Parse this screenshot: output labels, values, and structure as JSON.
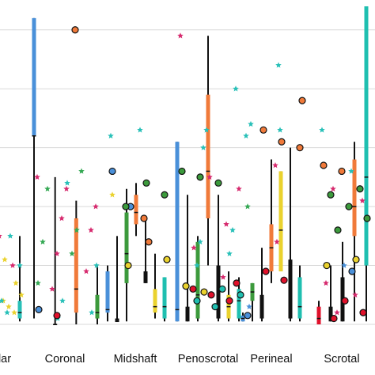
{
  "chart_data": {
    "type": "box",
    "categories": [
      "Glandular",
      "Coronal",
      "Midshaft",
      "Penoscrotal",
      "Perineal",
      "Scrotal"
    ],
    "visible_category_text": [
      "lar",
      "Coronal",
      "Midshaft",
      "Penoscrotal",
      "Perineal",
      "Scrotal"
    ],
    "ylim": [
      0,
      5.4
    ],
    "grid": true,
    "legend": "none",
    "colors": {
      "blue": "#4a90d9",
      "black": "#111111",
      "orange": "#f07a3a",
      "green": "#3c9a3c",
      "yellow": "#ead22e",
      "teal": "#1fbfb0",
      "red": "#e0112b",
      "magenta": "#d62a6e",
      "cyan_star": "#28c0b8",
      "green_star": "#34a853"
    },
    "groups": [
      {
        "category": "Glandular",
        "boxes": [
          {
            "color": "yellow",
            "whisker": [
              0.05,
              1.1
            ],
            "box": [
              0.1,
              0.5
            ],
            "median": 0.3
          },
          {
            "color": "cyan_star",
            "whisker": [
              0.05,
              1.5
            ],
            "box": [
              0.1,
              0.4
            ],
            "median": 0.2
          }
        ],
        "stars": [
          {
            "color": "magenta",
            "y": 1.5
          },
          {
            "color": "yellow",
            "y": 1.1
          },
          {
            "color": "cyan_star",
            "y": 1.5
          },
          {
            "color": "yellow",
            "y": 0.7
          },
          {
            "color": "yellow",
            "y": 0.5
          },
          {
            "color": "yellow",
            "y": 0.4
          },
          {
            "color": "yellow",
            "y": 0.3
          },
          {
            "color": "yellow",
            "y": 0.2
          },
          {
            "color": "cyan_star",
            "y": 1.0
          },
          {
            "color": "cyan_star",
            "y": 0.4
          },
          {
            "color": "cyan_star",
            "y": 0.2
          },
          {
            "color": "magenta",
            "y": 1.0
          }
        ],
        "circles": []
      },
      {
        "category": "Coronal",
        "boxes": [
          {
            "color": "blue",
            "whisker": [
              0.1,
              5.2
            ],
            "box": [
              3.2,
              5.2
            ],
            "median": 3.2
          },
          {
            "color": "black",
            "whisker": [
              0.0,
              2.5
            ],
            "box": [
              0.0,
              0.0
            ],
            "median": 0.0
          },
          {
            "color": "orange",
            "whisker": [
              0.0,
              2.1
            ],
            "box": [
              0.2,
              1.8
            ],
            "median": 0.6
          },
          {
            "color": "green",
            "whisker": [
              0.0,
              1.0
            ],
            "box": [
              0.1,
              0.5
            ],
            "median": 0.2
          }
        ],
        "stars": [
          {
            "color": "magenta",
            "y": 2.5
          },
          {
            "color": "magenta",
            "y": 2.3
          },
          {
            "color": "magenta",
            "y": 2.0
          },
          {
            "color": "magenta",
            "y": 1.8
          },
          {
            "color": "magenta",
            "y": 1.6
          },
          {
            "color": "magenta",
            "y": 1.2
          },
          {
            "color": "magenta",
            "y": 0.9
          },
          {
            "color": "magenta",
            "y": 0.6
          },
          {
            "color": "green_star",
            "y": 2.6
          },
          {
            "color": "green_star",
            "y": 2.3
          },
          {
            "color": "green_star",
            "y": 1.6
          },
          {
            "color": "green_star",
            "y": 1.4
          },
          {
            "color": "green_star",
            "y": 1.2
          },
          {
            "color": "green_star",
            "y": 0.7
          },
          {
            "color": "cyan_star",
            "y": 2.4
          },
          {
            "color": "cyan_star",
            "y": 1.0
          },
          {
            "color": "cyan_star",
            "y": 0.4
          },
          {
            "color": "cyan_star",
            "y": 0.2
          },
          {
            "color": "cyan_star",
            "y": 0.1
          }
        ],
        "circles": [
          {
            "color": "blue",
            "y": 0.25
          },
          {
            "color": "red",
            "y": 0.15
          },
          {
            "color": "orange",
            "y": 5.0
          }
        ]
      },
      {
        "category": "Midshaft",
        "boxes": [
          {
            "color": "blue",
            "whisker": [
              0.05,
              1.0
            ],
            "box": [
              0.2,
              0.9
            ],
            "median": 0.25
          },
          {
            "color": "black",
            "whisker": [
              0.05,
              1.5
            ],
            "box": [
              0.05,
              0.1
            ],
            "median": 0.05
          },
          {
            "color": "green",
            "whisker": [
              0.05,
              2.3
            ],
            "box": [
              0.7,
              1.9
            ],
            "median": 1.2
          },
          {
            "color": "orange",
            "whisker": [
              1.5,
              2.4
            ],
            "box": [
              1.7,
              2.2
            ],
            "median": 1.9
          },
          {
            "color": "black",
            "whisker": [
              0.7,
              1.8
            ],
            "box": [
              0.7,
              0.9
            ],
            "median": 0.75
          },
          {
            "color": "yellow",
            "whisker": [
              0.1,
              1.2
            ],
            "box": [
              0.2,
              0.6
            ],
            "median": 0.3
          },
          {
            "color": "teal",
            "whisker": [
              0.05,
              0.8
            ],
            "box": [
              0.1,
              0.8
            ],
            "median": 0.3
          }
        ],
        "stars": [
          {
            "color": "cyan_star",
            "y": 3.2
          },
          {
            "color": "cyan_star",
            "y": 3.3
          },
          {
            "color": "yellow",
            "y": 2.2
          }
        ],
        "circles": [
          {
            "color": "blue",
            "y": 2.6
          },
          {
            "color": "blue",
            "y": 2.0
          },
          {
            "color": "orange",
            "y": 1.4
          },
          {
            "color": "yellow",
            "y": 1.1
          },
          {
            "color": "yellow",
            "y": 1.0
          },
          {
            "color": "green",
            "y": 2.4
          },
          {
            "color": "green",
            "y": 2.2
          },
          {
            "color": "green",
            "y": 2.0
          },
          {
            "color": "orange",
            "y": 1.8
          }
        ]
      },
      {
        "category": "Penoscrotal",
        "boxes": [
          {
            "color": "blue",
            "whisker": [
              0.05,
              3.1
            ],
            "box": [
              0.05,
              3.1
            ],
            "median": 0.25
          },
          {
            "color": "black",
            "whisker": [
              0.05,
              2.2
            ],
            "box": [
              0.05,
              0.3
            ],
            "median": 0.1
          },
          {
            "color": "green",
            "whisker": [
              0.05,
              1.5
            ],
            "box": [
              0.1,
              1.4
            ],
            "median": 0.5
          },
          {
            "color": "orange",
            "whisker": [
              1.0,
              4.9
            ],
            "box": [
              1.8,
              3.9
            ],
            "median": 2.6
          },
          {
            "color": "black",
            "whisker": [
              0.05,
              2.2
            ],
            "box": [
              0.1,
              1.0
            ],
            "median": 0.3
          },
          {
            "color": "yellow",
            "whisker": [
              0.05,
              0.9
            ],
            "box": [
              0.1,
              0.5
            ],
            "median": 0.3
          },
          {
            "color": "teal",
            "whisker": [
              0.05,
              0.8
            ],
            "box": [
              0.1,
              0.6
            ],
            "median": 0.4
          }
        ],
        "stars": [
          {
            "color": "magenta",
            "y": 4.9
          },
          {
            "color": "magenta",
            "y": 2.5
          },
          {
            "color": "magenta",
            "y": 2.3
          },
          {
            "color": "cyan_star",
            "y": 3.3
          },
          {
            "color": "cyan_star",
            "y": 4.0
          },
          {
            "color": "cyan_star",
            "y": 3.0
          },
          {
            "color": "cyan_star",
            "y": 1.6
          },
          {
            "color": "cyan_star",
            "y": 1.4
          },
          {
            "color": "cyan_star",
            "y": 1.2
          },
          {
            "color": "cyan_star",
            "y": 1.0
          },
          {
            "color": "magenta",
            "y": 1.7
          },
          {
            "color": "magenta",
            "y": 1.3
          },
          {
            "color": "magenta",
            "y": 0.8
          }
        ],
        "circles": [
          {
            "color": "green",
            "y": 2.6
          },
          {
            "color": "green",
            "y": 2.5
          },
          {
            "color": "green",
            "y": 2.4
          },
          {
            "color": "red",
            "y": 0.7
          },
          {
            "color": "red",
            "y": 0.6
          },
          {
            "color": "red",
            "y": 0.5
          },
          {
            "color": "red",
            "y": 0.4
          },
          {
            "color": "yellow",
            "y": 0.65
          },
          {
            "color": "yellow",
            "y": 0.55
          },
          {
            "color": "teal",
            "y": 0.6
          },
          {
            "color": "teal",
            "y": 0.5
          },
          {
            "color": "teal",
            "y": 0.4
          },
          {
            "color": "teal",
            "y": 0.3
          }
        ]
      },
      {
        "category": "Perineal",
        "boxes": [
          {
            "color": "blue",
            "whisker": [
              0.05,
              0.2
            ],
            "box": [
              0.05,
              0.15
            ],
            "median": 0.1
          },
          {
            "color": "green",
            "whisker": [
              0.05,
              0.7
            ],
            "box": [
              0.4,
              0.7
            ],
            "median": 0.55
          },
          {
            "color": "black",
            "whisker": [
              0.05,
              1.3
            ],
            "box": [
              0.1,
              0.5
            ],
            "median": 0.3
          },
          {
            "color": "orange",
            "whisker": [
              0.7,
              2.8
            ],
            "box": [
              0.9,
              1.7
            ],
            "median": 1.3
          },
          {
            "color": "yellow",
            "whisker": [
              0.9,
              2.6
            ],
            "box": [
              0.9,
              2.6
            ],
            "median": 1.6
          },
          {
            "color": "black",
            "whisker": [
              0.05,
              3.0
            ],
            "box": [
              0.1,
              1.1
            ],
            "median": 0.7
          },
          {
            "color": "teal",
            "whisker": [
              0.05,
              1.0
            ],
            "box": [
              0.1,
              0.8
            ],
            "median": 0.3
          }
        ],
        "stars": [
          {
            "color": "cyan_star",
            "y": 3.2
          },
          {
            "color": "magenta",
            "y": 2.7
          },
          {
            "color": "green_star",
            "y": 2.0
          },
          {
            "color": "magenta",
            "y": 1.4
          },
          {
            "color": "blue",
            "y": 0.3
          },
          {
            "color": "cyan_star",
            "y": 4.4
          },
          {
            "color": "cyan_star",
            "y": 3.4
          },
          {
            "color": "cyan_star",
            "y": 3.3
          }
        ],
        "circles": [
          {
            "color": "blue",
            "y": 0.15
          },
          {
            "color": "red",
            "y": 0.9
          },
          {
            "color": "red",
            "y": 0.75
          },
          {
            "color": "orange",
            "y": 3.8
          },
          {
            "color": "orange",
            "y": 3.3
          },
          {
            "color": "orange",
            "y": 3.1
          },
          {
            "color": "orange",
            "y": 3.0
          }
        ]
      },
      {
        "category": "Scrotal",
        "boxes": [
          {
            "color": "red",
            "whisker": [
              0.0,
              0.4
            ],
            "box": [
              0.0,
              0.3
            ],
            "median": 0.1
          },
          {
            "color": "black",
            "whisker": [
              0.05,
              1.0
            ],
            "box": [
              0.05,
              0.3
            ],
            "median": 0.1
          },
          {
            "color": "black",
            "whisker": [
              0.05,
              1.4
            ],
            "box": [
              0.05,
              0.8
            ],
            "median": 0.3
          },
          {
            "color": "orange",
            "whisker": [
              0.05,
              3.1
            ],
            "box": [
              1.5,
              2.8
            ],
            "median": 2.0
          },
          {
            "color": "teal",
            "whisker": [
              0.05,
              5.4
            ],
            "box": [
              1.0,
              5.4
            ],
            "median": 2.5
          }
        ],
        "stars": [
          {
            "color": "cyan_star",
            "y": 3.3
          },
          {
            "color": "cyan_star",
            "y": 2.6
          },
          {
            "color": "magenta",
            "y": 2.3
          },
          {
            "color": "magenta",
            "y": 2.1
          },
          {
            "color": "blue",
            "y": 1.0
          },
          {
            "color": "magenta",
            "y": 0.7
          },
          {
            "color": "magenta",
            "y": 0.5
          },
          {
            "color": "magenta",
            "y": 0.2
          }
        ],
        "circles": [
          {
            "color": "orange",
            "y": 2.7
          },
          {
            "color": "orange",
            "y": 2.6
          },
          {
            "color": "green",
            "y": 2.3
          },
          {
            "color": "green",
            "y": 2.2
          },
          {
            "color": "green",
            "y": 2.0
          },
          {
            "color": "green",
            "y": 1.8
          },
          {
            "color": "green",
            "y": 1.6
          },
          {
            "color": "yellow",
            "y": 1.1
          },
          {
            "color": "yellow",
            "y": 1.0
          },
          {
            "color": "red",
            "y": 0.4
          },
          {
            "color": "red",
            "y": 0.2
          },
          {
            "color": "red",
            "y": 0.1
          },
          {
            "color": "blue",
            "y": 0.9
          }
        ]
      }
    ]
  }
}
